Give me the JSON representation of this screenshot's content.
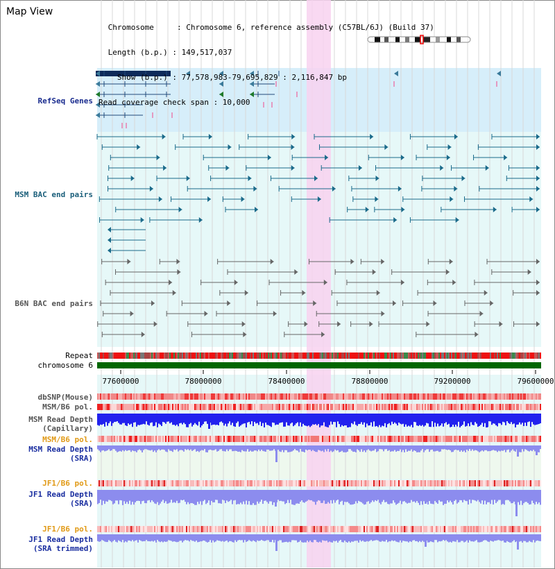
{
  "header": {
    "title": "Map View",
    "info_lines": [
      " Chromosome     : Chromosome 6, reference assembly (C57BL/6J) (Build 37)",
      " Length (b.p.) : 149,517,037",
      "   Show (b.p.) : 77,578,983-79,695,829 : 2,116,847 bp",
      "Read coverage check span : 10,000"
    ]
  },
  "tracks": {
    "refseq": "RefSeq Genes",
    "msm_bac": "MSM BAC end pairs",
    "b6n_bac": "B6N BAC end pairs",
    "repeat": "Repeat",
    "chromosome": "chromosome 6",
    "dbsnp": "dbSNP(Mouse)",
    "msm_b6_pol_1": "MSM/B6 pol.",
    "msm_read_depth_cap": "MSM Read Depth\n(Capillary)",
    "msm_b6_pol_2": "MSM/B6 pol.",
    "msm_read_depth_sra": "MSM Read Depth\n(SRA)",
    "jf1_b6_pol_1": "JF1/B6 pol.",
    "jf1_read_depth_sra": "JF1 Read Depth\n(SRA)",
    "jf1_b6_pol_2": "JF1/B6 pol.",
    "jf1_read_depth_trim": "JF1 Read Depth\n(SRA trimmed)"
  },
  "axis": {
    "ticks": [
      "77600000",
      "78000000",
      "78400000",
      "78800000",
      "79200000",
      "79600000"
    ]
  },
  "colors": {
    "refseq_bg": "#d6eefa",
    "track_bg": "#e6f8f8",
    "highlight": "#f8d2f0",
    "chromosome": "#006600",
    "msm_depth": "#2222ee",
    "sra_depth": "#8c8cee"
  }
}
